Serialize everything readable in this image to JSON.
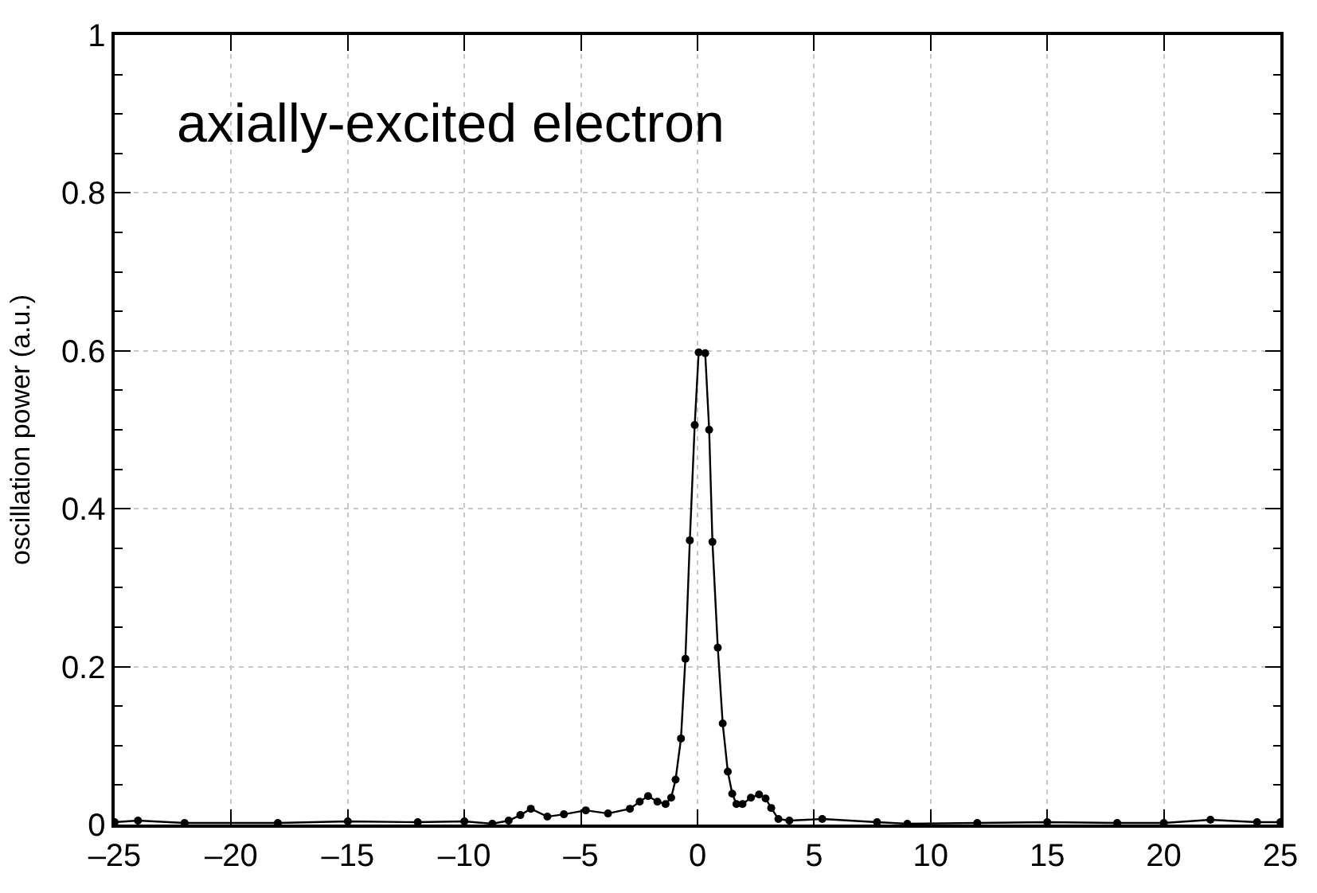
{
  "chart_data": {
    "type": "line",
    "title": "axially-excited electron",
    "ylabel": "oscillation power (a.u.)",
    "x": [
      -25,
      -24,
      -22,
      -18,
      -15,
      -12,
      -10,
      -8.8,
      -8.1,
      -7.6,
      -7.15,
      -6.44,
      -5.73,
      -4.79,
      -3.84,
      -2.9,
      -2.48,
      -2.12,
      -1.72,
      -1.37,
      -1.13,
      -0.94,
      -0.71,
      -0.52,
      -0.33,
      -0.12,
      0.05,
      0.33,
      0.5,
      0.64,
      0.87,
      1.08,
      1.3,
      1.49,
      1.67,
      1.93,
      2.29,
      2.64,
      2.92,
      3.16,
      3.47,
      3.94,
      5.35,
      7.7,
      9,
      12,
      15,
      18,
      20,
      22,
      24,
      25
    ],
    "series": [
      {
        "color": "#000000",
        "values": [
          0.003,
          0.005,
          0.002,
          0.002,
          0.004,
          0.003,
          0.004,
          0.001,
          0.005,
          0.012,
          0.02,
          0.01,
          0.013,
          0.018,
          0.014,
          0.02,
          0.029,
          0.036,
          0.029,
          0.026,
          0.034,
          0.057,
          0.109,
          0.21,
          0.36,
          0.506,
          0.598,
          0.597,
          0.5,
          0.358,
          0.224,
          0.128,
          0.067,
          0.039,
          0.026,
          0.026,
          0.034,
          0.038,
          0.033,
          0.021,
          0.007,
          0.005,
          0.007,
          0.003,
          0.001,
          0.002,
          0.003,
          0.002,
          0.002,
          0.006,
          0.003,
          0.003
        ]
      }
    ],
    "xlim": [
      -25,
      25
    ],
    "ylim": [
      0,
      1
    ],
    "xticks": [
      {
        "value": -25,
        "label": "–25"
      },
      {
        "value": -20,
        "label": "–20"
      },
      {
        "value": -15,
        "label": "–15"
      },
      {
        "value": -10,
        "label": "–10"
      },
      {
        "value": -5,
        "label": "–5"
      },
      0,
      5,
      10,
      15,
      20,
      25
    ],
    "yticks": [
      0,
      0.2,
      0.4,
      0.6,
      0.8,
      1
    ],
    "grid": true,
    "marker": "circle",
    "line_style": "solid"
  }
}
